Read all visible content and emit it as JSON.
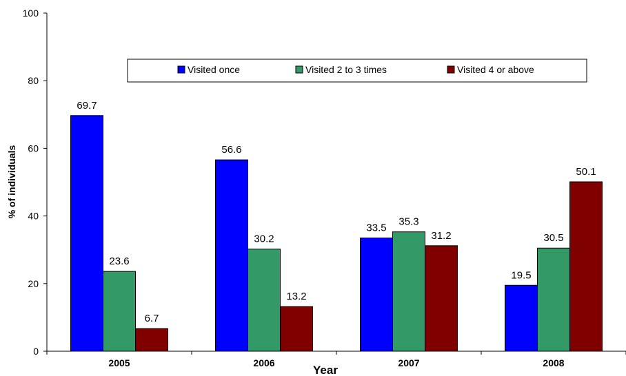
{
  "chart_data": {
    "type": "bar",
    "title": "",
    "xlabel": "Year",
    "ylabel": "% of individuals",
    "ylim": [
      0,
      100
    ],
    "yticks": [
      0,
      20,
      40,
      60,
      80,
      100
    ],
    "categories": [
      "2005",
      "2006",
      "2007",
      "2008"
    ],
    "grid": false,
    "legend_position": "top",
    "series": [
      {
        "name": "Visited once",
        "color": "#0000ff",
        "values": [
          69.7,
          56.6,
          33.5,
          19.5
        ]
      },
      {
        "name": "Visited 2 to 3 times",
        "color": "#339966",
        "values": [
          23.6,
          30.2,
          35.3,
          30.5
        ]
      },
      {
        "name": "Visited 4 or above",
        "color": "#800000",
        "values": [
          6.7,
          13.2,
          31.2,
          50.1
        ]
      }
    ]
  }
}
